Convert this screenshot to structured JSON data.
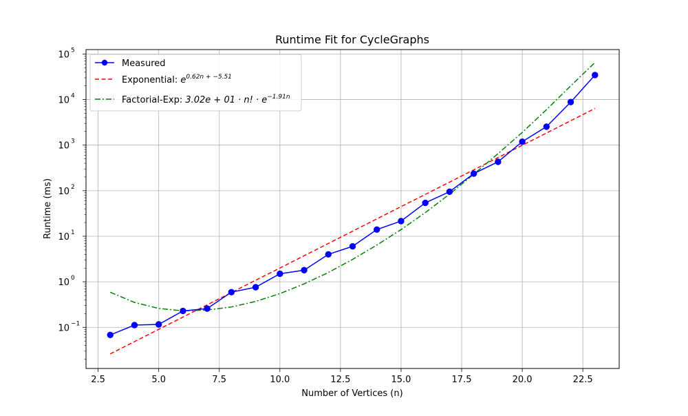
{
  "chart_data": {
    "type": "line",
    "title": "Runtime Fit for CycleGraphs",
    "xlabel": "Number of Vertices (n)",
    "ylabel": "Runtime (ms)",
    "xlim": [
      2.0,
      24.0
    ],
    "ylim": [
      0.0125,
      125000
    ],
    "yscale": "log",
    "grid": true,
    "legend_position": "upper-left",
    "x_ticks": [
      2.5,
      5.0,
      7.5,
      10.0,
      12.5,
      15.0,
      17.5,
      20.0,
      22.5
    ],
    "x_tick_labels": [
      "2.5",
      "5.0",
      "7.5",
      "10.0",
      "12.5",
      "15.0",
      "17.5",
      "20.0",
      "22.5"
    ],
    "y_ticks": [
      {
        "value": 0.1,
        "base": "10",
        "exp": "−1"
      },
      {
        "value": 1,
        "base": "10",
        "exp": "0"
      },
      {
        "value": 10,
        "base": "10",
        "exp": "1"
      },
      {
        "value": 100,
        "base": "10",
        "exp": "2"
      },
      {
        "value": 1000,
        "base": "10",
        "exp": "3"
      },
      {
        "value": 10000,
        "base": "10",
        "exp": "4"
      },
      {
        "value": 100000,
        "base": "10",
        "exp": "5"
      }
    ],
    "series": [
      {
        "name": "Measured",
        "label_parts": [
          "Measured"
        ],
        "color": "#0000ff",
        "style": "solid-markers",
        "x": [
          3,
          4,
          5,
          6,
          7,
          8,
          9,
          10,
          11,
          12,
          13,
          14,
          15,
          16,
          17,
          18,
          19,
          20,
          21,
          22,
          23
        ],
        "y": [
          0.068,
          0.112,
          0.116,
          0.229,
          0.258,
          0.592,
          0.76,
          1.5,
          1.8,
          4.0,
          6.0,
          14.0,
          21.5,
          54.0,
          95.0,
          237,
          430,
          1190,
          2540,
          8800,
          34500
        ]
      },
      {
        "name": "Exponential: e^(0.62n + −5.51)",
        "label_parts": [
          "Exponential: ",
          "e",
          "0.62n + −5.51"
        ],
        "color": "#ff0000",
        "style": "dashed",
        "x": [
          3,
          4,
          5,
          6,
          7,
          8,
          9,
          10,
          11,
          12,
          13,
          14,
          15,
          16,
          17,
          18,
          19,
          20,
          21,
          22,
          23
        ],
        "y": [
          0.0261,
          0.0486,
          0.0903,
          0.168,
          0.312,
          0.58,
          1.08,
          2.0,
          3.73,
          6.93,
          12.9,
          24.0,
          44.6,
          82.8,
          154,
          287,
          533,
          991,
          1840,
          3430,
          6380
        ]
      },
      {
        "name": "Factorial-Exp: 3.02e+01·n!·e^(−1.91n)",
        "label_parts": [
          "Factorial-Exp: ",
          "3.02e + 01 · n! · e",
          "−1.91n"
        ],
        "color": "#008000",
        "style": "dashdot",
        "x": [
          3,
          4,
          5,
          6,
          7,
          8,
          9,
          10,
          11,
          12,
          13,
          14,
          15,
          16,
          17,
          18,
          19,
          20,
          21,
          22,
          23
        ],
        "y": [
          0.59,
          0.352,
          0.26,
          0.23,
          0.24,
          0.28,
          0.37,
          0.55,
          0.9,
          1.6,
          3.1,
          6.4,
          14.0,
          33.0,
          84.0,
          230,
          650,
          1900,
          6000,
          20000,
          65000
        ]
      }
    ]
  }
}
